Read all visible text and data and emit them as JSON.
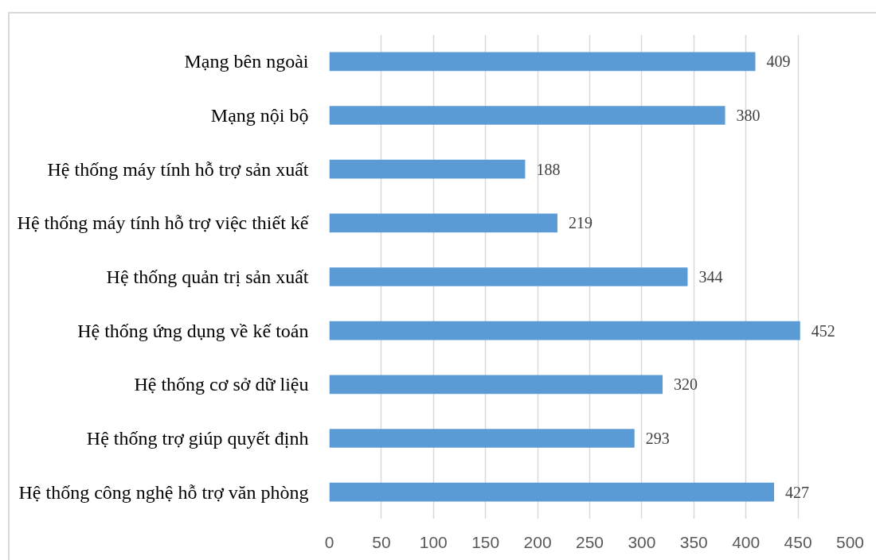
{
  "chart_data": {
    "type": "bar",
    "orientation": "horizontal",
    "categories": [
      "Mạng bên ngoài",
      "Mạng nội bộ",
      "Hệ thống máy tính hỗ trợ sản xuất",
      "Hệ thống máy tính hỗ trợ việc thiết kế",
      "Hệ thống quản trị sản xuất",
      "Hệ thống ứng dụng về kế toán",
      "Hệ thống cơ sở dữ liệu",
      "Hệ thống trợ giúp quyết định",
      "Hệ thống công nghệ hỗ trợ văn phòng"
    ],
    "values": [
      409,
      380,
      188,
      219,
      344,
      452,
      320,
      293,
      427
    ],
    "color": "#5b9bd5",
    "xlim": [
      0,
      500
    ],
    "xticks": [
      0,
      50,
      100,
      150,
      200,
      250,
      300,
      350,
      400,
      450,
      500
    ],
    "grid": "x",
    "data_labels": true
  }
}
